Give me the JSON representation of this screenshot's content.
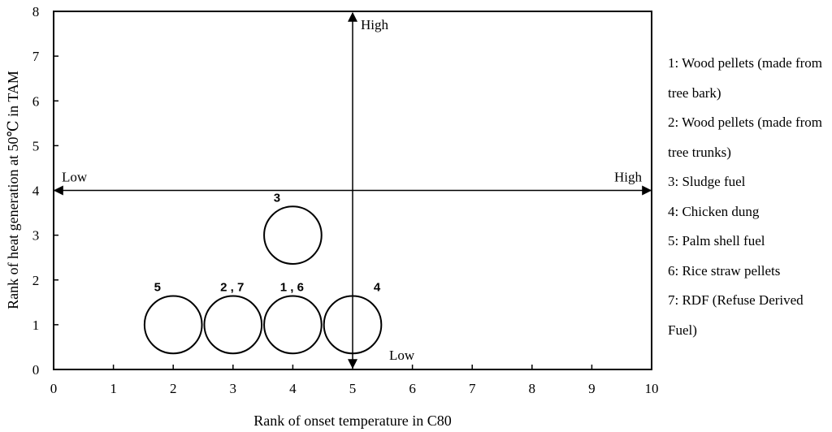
{
  "chart_data": {
    "type": "bubble-quadrant",
    "xlabel": "Rank of onset temperature in C80",
    "ylabel": "Rank of heat generation at 50℃ in TAM",
    "xlim": [
      0,
      10
    ],
    "ylim": [
      0,
      8
    ],
    "xticks": [
      0,
      1,
      2,
      3,
      4,
      5,
      6,
      7,
      8,
      9,
      10
    ],
    "yticks": [
      0,
      1,
      2,
      3,
      4,
      5,
      6,
      7,
      8
    ],
    "grid": false,
    "divider_lines": {
      "horizontal": {
        "y": 4,
        "low_label": "Low",
        "high_label": "High"
      },
      "vertical": {
        "x": 5,
        "low_label": "Low",
        "high_label": "High"
      }
    },
    "points": [
      {
        "label": "5",
        "x": 2,
        "y": 1
      },
      {
        "label": "2 , 7",
        "x": 3,
        "y": 1
      },
      {
        "label": "1 , 6",
        "x": 4,
        "y": 1
      },
      {
        "label": "4",
        "x": 5,
        "y": 1
      },
      {
        "label": "3",
        "x": 4,
        "y": 3
      }
    ],
    "legend": [
      "1: Wood pellets (made from tree bark)",
      "2: Wood pellets (made from tree trunks)",
      "3: Sludge fuel",
      "4: Chicken dung",
      "5: Palm shell fuel",
      "6: Rice straw pellets",
      "7: RDF (Refuse Derived Fuel)"
    ]
  }
}
